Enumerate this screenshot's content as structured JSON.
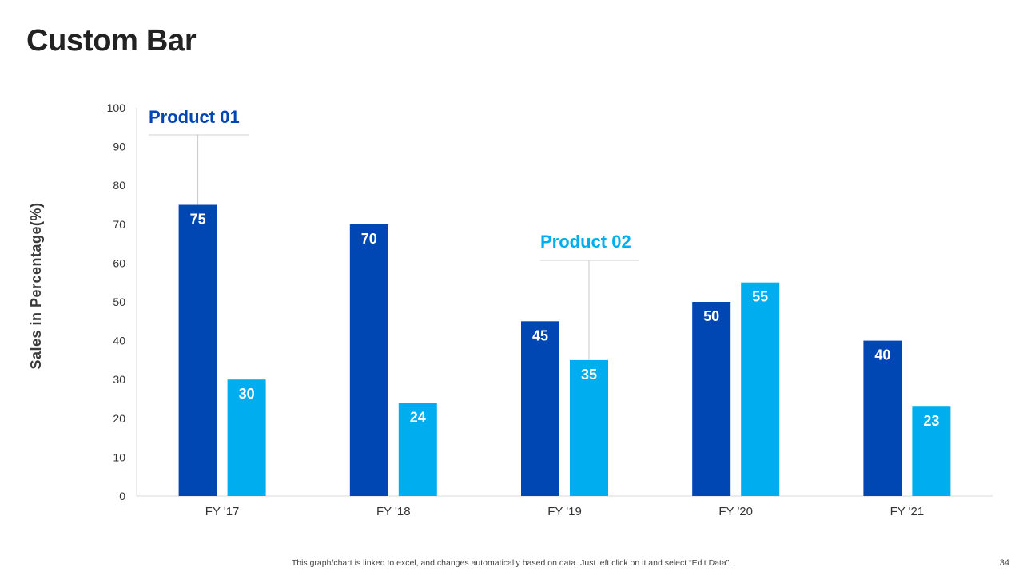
{
  "slide": {
    "title": "Custom Bar",
    "footer_note": "This graph/chart is linked to excel,  and changes automatically based on data. Just left click on it and select “Edit Data”.",
    "page_number": "34"
  },
  "colors": {
    "product_01": "#0047B3",
    "product_02": "#00AEEF",
    "title": "#222222",
    "axis": "#d9d9d9",
    "tick_text": "#333333"
  },
  "chart_data": {
    "type": "bar",
    "title": "",
    "xlabel": "",
    "ylabel": "Sales in Percentage(%)",
    "ylim": [
      0,
      100
    ],
    "yticks": [
      0,
      10,
      20,
      30,
      40,
      50,
      60,
      70,
      80,
      90,
      100
    ],
    "grid": false,
    "categories": [
      "FY '17",
      "FY '18",
      "FY '19",
      "FY '20",
      "FY '21"
    ],
    "series": [
      {
        "name": "Product 01",
        "values": [
          75,
          70,
          45,
          50,
          40
        ]
      },
      {
        "name": "Product 02",
        "values": [
          30,
          24,
          35,
          55,
          23
        ]
      }
    ],
    "annotations": [
      {
        "text": "Product 01",
        "series": 0,
        "category": 0
      },
      {
        "text": "Product 02",
        "series": 1,
        "category": 2
      }
    ]
  }
}
